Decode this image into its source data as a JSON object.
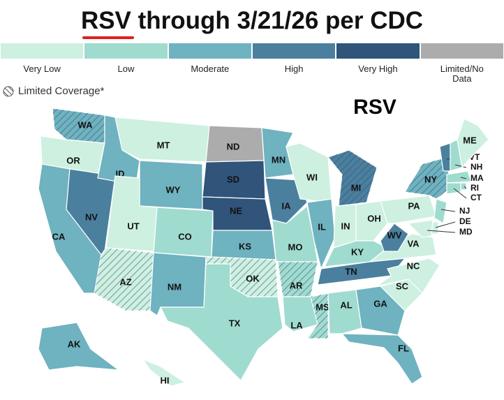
{
  "header": {
    "title": "RSV through 3/21/26 per CDC"
  },
  "legend": {
    "items": [
      {
        "label": "Very Low",
        "color": "#cdf0e1"
      },
      {
        "label": "Low",
        "color": "#a0dbd0"
      },
      {
        "label": "Moderate",
        "color": "#6fb2c0"
      },
      {
        "label": "High",
        "color": "#4b7f9e"
      },
      {
        "label": "Very High",
        "color": "#30547a"
      },
      {
        "label": "Limited/No Data",
        "color": "#acacac"
      }
    ],
    "limited_coverage": "Limited Coverage*"
  },
  "map": {
    "title": "RSV",
    "states": [
      {
        "label": "WA",
        "color": "#6fb2c0",
        "hatched": true
      },
      {
        "label": "OR",
        "color": "#cdf0e1"
      },
      {
        "label": "CA",
        "color": "#6fb2c0"
      },
      {
        "label": "NV",
        "color": "#4b7f9e"
      },
      {
        "label": "ID",
        "color": "#6fb2c0"
      },
      {
        "label": "MT",
        "color": "#cdf0e1"
      },
      {
        "label": "WY",
        "color": "#6fb2c0"
      },
      {
        "label": "UT",
        "color": "#cdf0e1"
      },
      {
        "label": "CO",
        "color": "#a0dbd0"
      },
      {
        "label": "AZ",
        "color": "#cdf0e1",
        "hatched": true
      },
      {
        "label": "NM",
        "color": "#6fb2c0"
      },
      {
        "label": "ND",
        "color": "#acacac"
      },
      {
        "label": "SD",
        "color": "#30547a"
      },
      {
        "label": "NE",
        "color": "#30547a"
      },
      {
        "label": "KS",
        "color": "#6fb2c0"
      },
      {
        "label": "OK",
        "color": "#cdf0e1",
        "hatched": true
      },
      {
        "label": "TX",
        "color": "#a0dbd0"
      },
      {
        "label": "MN",
        "color": "#6fb2c0"
      },
      {
        "label": "IA",
        "color": "#4b7f9e"
      },
      {
        "label": "MO",
        "color": "#a0dbd0"
      },
      {
        "label": "AR",
        "color": "#a0dbd0",
        "hatched": true
      },
      {
        "label": "LA",
        "color": "#a0dbd0"
      },
      {
        "label": "WI",
        "color": "#cdf0e1"
      },
      {
        "label": "IL",
        "color": "#6fb2c0"
      },
      {
        "label": "MI",
        "color": "#4b7f9e",
        "hatched": true
      },
      {
        "label": "IN",
        "color": "#cdf0e1"
      },
      {
        "label": "OH",
        "color": "#cdf0e1"
      },
      {
        "label": "KY",
        "color": "#a0dbd0"
      },
      {
        "label": "TN",
        "color": "#4b7f9e"
      },
      {
        "label": "MS",
        "color": "#a0dbd0",
        "hatched": true
      },
      {
        "label": "AL",
        "color": "#a0dbd0"
      },
      {
        "label": "GA",
        "color": "#6fb2c0"
      },
      {
        "label": "FL",
        "color": "#6fb2c0"
      },
      {
        "label": "SC",
        "color": "#cdf0e1"
      },
      {
        "label": "NC",
        "color": "#cdf0e1"
      },
      {
        "label": "VA",
        "color": "#cdf0e1"
      },
      {
        "label": "WV",
        "color": "#4b7f9e"
      },
      {
        "label": "PA",
        "color": "#cdf0e1"
      },
      {
        "label": "NY",
        "color": "#6fb2c0",
        "hatched": true
      },
      {
        "label": "VT",
        "color": "#4b7f9e"
      },
      {
        "label": "NH",
        "color": "#a0dbd0"
      },
      {
        "label": "ME",
        "color": "#cdf0e1"
      },
      {
        "label": "MA",
        "color": "#a0dbd0"
      },
      {
        "label": "RI",
        "color": "#a0dbd0"
      },
      {
        "label": "CT",
        "color": "#a0dbd0"
      },
      {
        "label": "NJ",
        "color": "#a0dbd0"
      },
      {
        "label": "DE",
        "color": "#cdf0e1"
      },
      {
        "label": "MD",
        "color": "#cdf0e1"
      },
      {
        "label": "AK",
        "color": "#6fb2c0"
      },
      {
        "label": "HI",
        "color": "#cdf0e1"
      }
    ]
  }
}
